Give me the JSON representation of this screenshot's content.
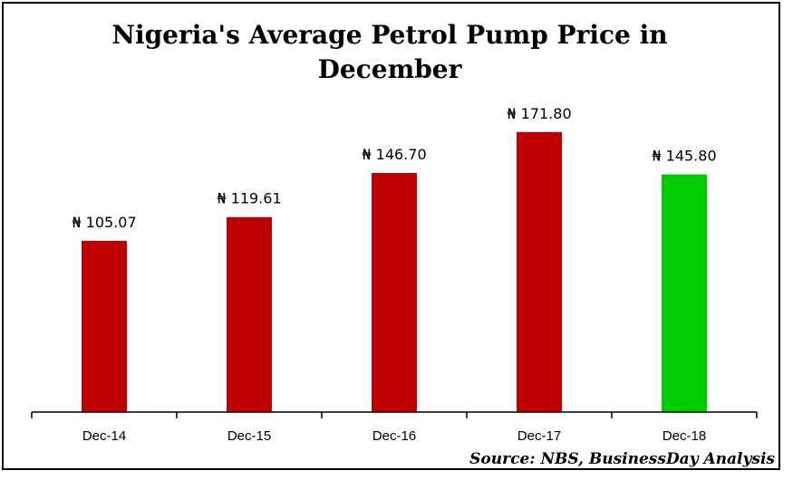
{
  "chart_data": {
    "type": "bar",
    "title": "Nigeria's Average Petrol Pump Price in December",
    "title_lines": [
      "Nigeria's Average Petrol Pump Price in",
      "December"
    ],
    "categories": [
      "Dec-14",
      "Dec-15",
      "Dec-16",
      "Dec-17",
      "Dec-18"
    ],
    "values": [
      105.07,
      119.61,
      146.7,
      171.8,
      145.8
    ],
    "data_labels": [
      "₦ 105.07",
      "₦ 119.61",
      "₦ 146.70",
      "₦ 171.80",
      "₦ 145.80"
    ],
    "bar_colors": [
      "#C00000",
      "#C00000",
      "#C00000",
      "#C00000",
      "#00CC00"
    ],
    "xlabel": "",
    "ylabel": "",
    "ylim": [
      0,
      200
    ],
    "grid": false,
    "legend": "none",
    "source": "Source: NBS, BusinessDay Analysis"
  }
}
